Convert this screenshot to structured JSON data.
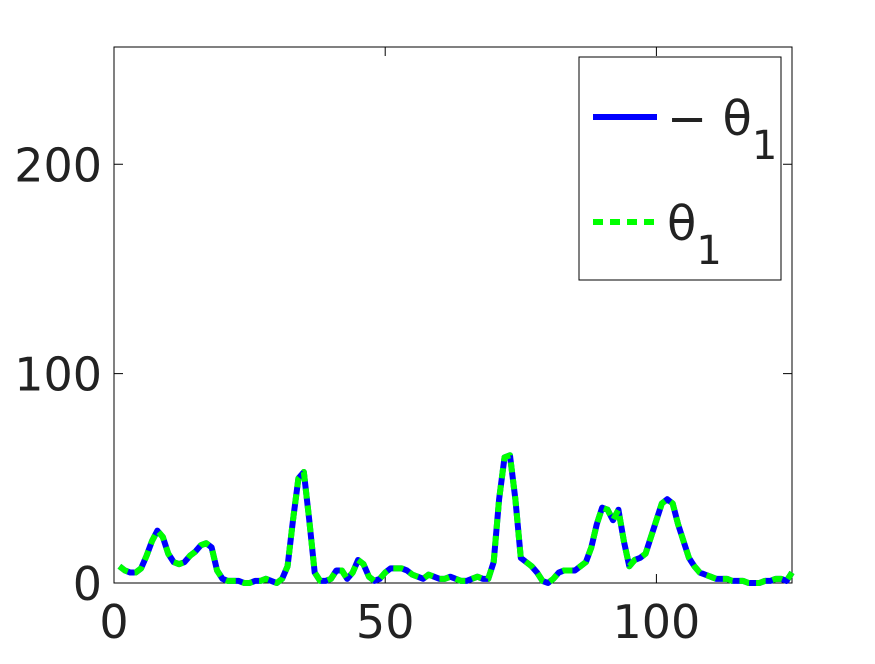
{
  "chart_data": {
    "type": "line",
    "x": [
      1,
      2,
      3,
      4,
      5,
      6,
      7,
      8,
      9,
      10,
      11,
      12,
      13,
      14,
      15,
      16,
      17,
      18,
      19,
      20,
      21,
      22,
      23,
      24,
      25,
      26,
      27,
      28,
      29,
      30,
      31,
      32,
      33,
      34,
      35,
      36,
      37,
      38,
      39,
      40,
      41,
      42,
      43,
      44,
      45,
      46,
      47,
      48,
      49,
      50,
      51,
      52,
      53,
      54,
      55,
      56,
      57,
      58,
      59,
      60,
      61,
      62,
      63,
      64,
      65,
      66,
      67,
      68,
      69,
      70,
      71,
      72,
      73,
      74,
      75,
      76,
      77,
      78,
      79,
      80,
      81,
      82,
      83,
      84,
      85,
      86,
      87,
      88,
      89,
      90,
      91,
      92,
      93,
      94,
      95,
      96,
      97,
      98,
      99,
      100,
      101,
      102,
      103,
      104,
      105,
      106,
      107,
      108,
      109,
      110,
      111,
      112,
      113,
      114,
      115,
      116,
      117,
      118,
      119,
      120,
      121,
      122,
      123,
      124,
      125
    ],
    "series": [
      {
        "name": "− θ1",
        "color": "#0000ff",
        "style": "solid",
        "values": [
          8,
          6,
          5,
          5,
          7,
          13,
          20,
          25,
          22,
          14,
          10,
          9,
          10,
          13,
          15,
          18,
          19,
          17,
          6,
          2,
          1,
          1,
          1,
          0,
          0,
          1,
          1,
          2,
          1,
          0,
          2,
          8,
          30,
          50,
          53,
          30,
          5,
          1,
          1,
          2,
          6,
          6,
          2,
          5,
          11,
          9,
          3,
          1,
          2,
          5,
          7,
          7,
          7,
          6,
          4,
          3,
          2,
          4,
          3,
          2,
          2,
          3,
          2,
          1,
          1,
          2,
          3,
          2,
          2,
          10,
          40,
          60,
          61,
          40,
          12,
          10,
          8,
          5,
          1,
          0,
          2,
          5,
          6,
          6,
          6,
          8,
          10,
          17,
          28,
          36,
          35,
          30,
          35,
          20,
          8,
          11,
          12,
          14,
          22,
          30,
          38,
          40,
          38,
          28,
          20,
          12,
          8,
          5,
          4,
          3,
          2,
          2,
          2,
          1,
          1,
          1,
          0,
          0,
          0,
          1,
          1,
          2,
          2,
          1,
          5
        ]
      },
      {
        "name": "θ1",
        "color": "#00ff00",
        "style": "dashed",
        "values": [
          8,
          6,
          5,
          5,
          7,
          13,
          20,
          25,
          22,
          14,
          10,
          9,
          10,
          13,
          15,
          18,
          19,
          17,
          6,
          2,
          1,
          1,
          1,
          0,
          0,
          1,
          1,
          2,
          1,
          0,
          2,
          8,
          30,
          50,
          53,
          30,
          5,
          1,
          1,
          2,
          6,
          6,
          2,
          5,
          11,
          9,
          3,
          1,
          2,
          5,
          7,
          7,
          7,
          6,
          4,
          3,
          2,
          4,
          3,
          2,
          2,
          3,
          2,
          1,
          1,
          2,
          3,
          2,
          2,
          10,
          40,
          60,
          61,
          40,
          12,
          10,
          8,
          5,
          1,
          0,
          2,
          5,
          6,
          6,
          6,
          8,
          10,
          17,
          28,
          36,
          35,
          30,
          35,
          20,
          8,
          11,
          12,
          14,
          22,
          30,
          38,
          40,
          38,
          28,
          20,
          12,
          8,
          5,
          4,
          3,
          2,
          2,
          2,
          1,
          1,
          1,
          0,
          0,
          0,
          1,
          1,
          2,
          2,
          1,
          5
        ]
      }
    ],
    "xlim": [
      0,
      125
    ],
    "ylim": [
      0,
      256
    ],
    "xticks": [
      0,
      50,
      100
    ],
    "yticks": [
      0,
      100,
      200
    ],
    "legend": "upper right"
  }
}
